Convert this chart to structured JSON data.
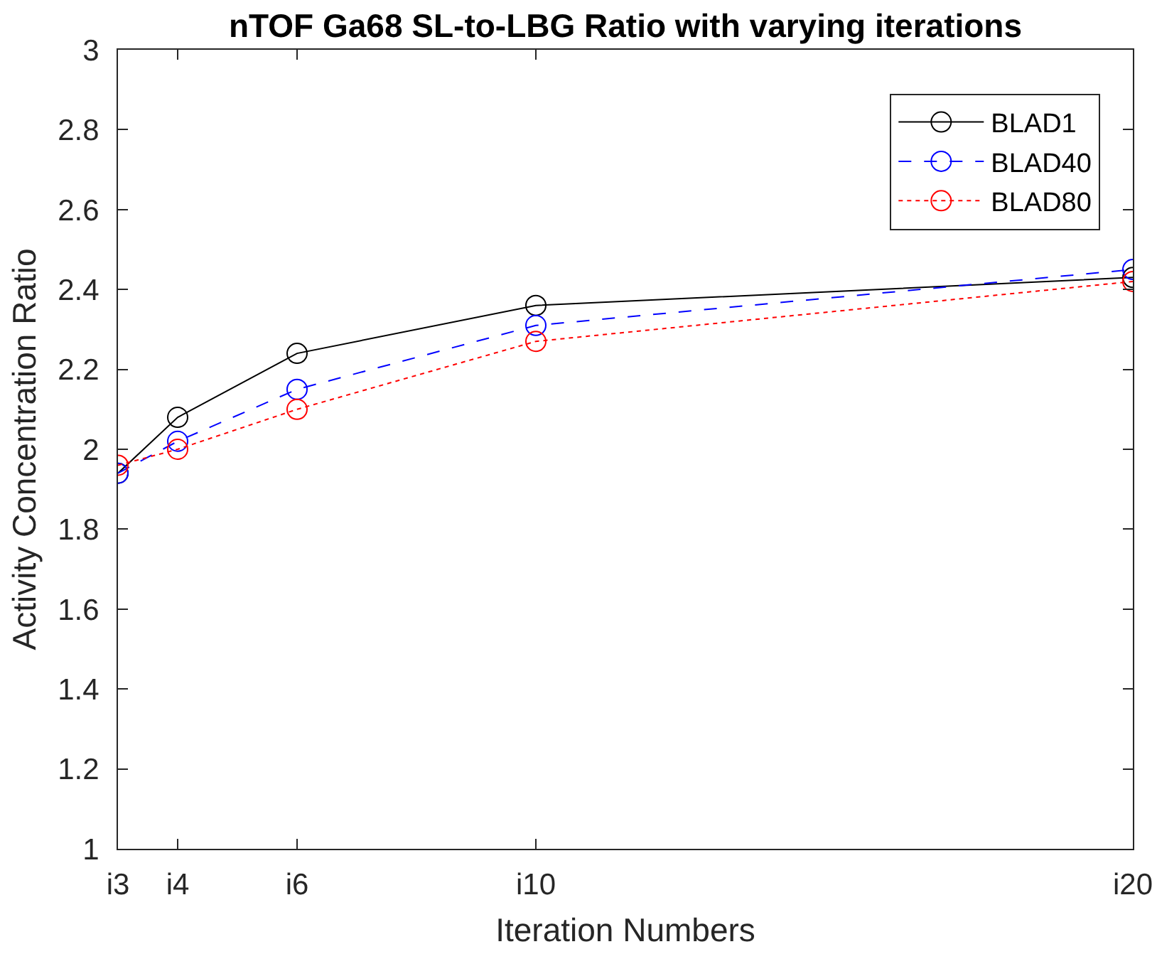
{
  "chart_data": {
    "type": "line",
    "title": "nTOF Ga68 SL-to-LBG Ratio with varying iterations",
    "xlabel": "Iteration Numbers",
    "ylabel": "Activity Concentration Ratio",
    "categories": [
      "i3",
      "i4",
      null,
      "i6",
      null,
      null,
      null,
      "i10",
      null,
      null,
      null,
      null,
      null,
      null,
      null,
      null,
      null,
      "i20"
    ],
    "series": [
      {
        "name": "BLAD1",
        "color": "#000000",
        "line_style": "solid",
        "x": [
          "i3",
          "i4",
          "i6",
          "i10",
          "i20"
        ],
        "values": [
          1.94,
          2.08,
          2.24,
          2.36,
          2.43
        ]
      },
      {
        "name": "BLAD40",
        "color": "#0000ff",
        "line_style": "dashed",
        "x": [
          "i3",
          "i4",
          "i6",
          "i10",
          "i20"
        ],
        "values": [
          1.94,
          2.02,
          2.15,
          2.31,
          2.45
        ]
      },
      {
        "name": "BLAD80",
        "color": "#ff0000",
        "line_style": "dotted",
        "x": [
          "i3",
          "i4",
          "i6",
          "i10",
          "i20"
        ],
        "values": [
          1.96,
          2.0,
          2.1,
          2.27,
          2.42
        ]
      }
    ],
    "ylim": [
      1,
      3
    ],
    "yticks": [
      1,
      1.2,
      1.4,
      1.6,
      1.8,
      2,
      2.2,
      2.4,
      2.6,
      2.8,
      3
    ],
    "grid": false,
    "legend": "top right",
    "marker": "circle"
  }
}
